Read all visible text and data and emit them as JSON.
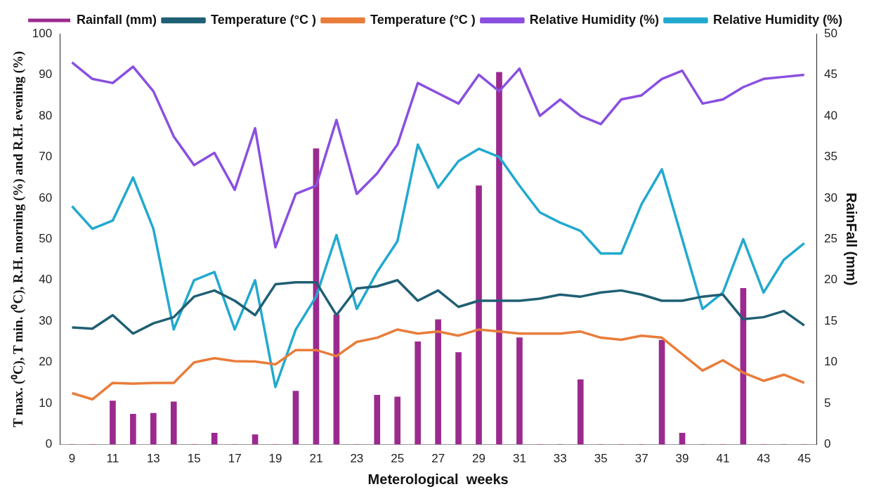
{
  "chart_data": {
    "type": "line",
    "xlabel": "Meterological  weeks",
    "ylabel": "T max. (⁰C), T min. (⁰C), R.H. morning (%) and R.H. evening (%)",
    "y2label": "RainFall (mm)",
    "x": [
      9,
      10,
      11,
      12,
      13,
      14,
      15,
      16,
      17,
      18,
      19,
      20,
      21,
      22,
      23,
      24,
      25,
      26,
      27,
      28,
      29,
      30,
      31,
      32,
      33,
      34,
      35,
      36,
      37,
      38,
      39,
      40,
      41,
      42,
      43,
      44,
      45
    ],
    "xlim": [
      8.4,
      45.6
    ],
    "xticks": [
      9,
      11,
      13,
      15,
      17,
      19,
      21,
      23,
      25,
      27,
      29,
      31,
      33,
      35,
      37,
      39,
      41,
      43,
      45
    ],
    "ylim": [
      0,
      100
    ],
    "yticks": [
      0,
      10,
      20,
      30,
      40,
      50,
      60,
      70,
      80,
      90,
      100
    ],
    "y2lim": [
      0,
      50
    ],
    "y2ticks": [
      0,
      5,
      10,
      15,
      20,
      25,
      30,
      35,
      40,
      45,
      50
    ],
    "grid": false,
    "legend": "top",
    "marker": "none",
    "line_style": "solid",
    "series": [
      {
        "name": "Rainfall (mm)",
        "type": "bar",
        "axis": "y2",
        "color": "#9b2a8f",
        "values": [
          0,
          0,
          5.3,
          3.7,
          3.8,
          5.2,
          0,
          1.4,
          0,
          1.2,
          0,
          6.5,
          36,
          15.8,
          0,
          6,
          5.8,
          12.5,
          15.2,
          11.2,
          31.5,
          45.3,
          13,
          0,
          0,
          7.9,
          0,
          0,
          0,
          12.7,
          1.4,
          0,
          0,
          19,
          0,
          0,
          0
        ]
      },
      {
        "name": "Temperature (°C )",
        "color": "#1f5f73",
        "values": [
          28.5,
          28.2,
          31.5,
          27,
          29.5,
          31,
          36,
          37.5,
          35,
          31.5,
          39,
          39.5,
          39.5,
          31.5,
          38,
          38.5,
          40,
          35,
          37.5,
          33.5,
          35,
          35,
          35,
          35.5,
          36.5,
          36,
          37,
          37.5,
          36.5,
          35,
          35,
          36,
          36.5,
          30.5,
          31,
          32.5,
          29
        ]
      },
      {
        "name": "Temperature (°C )",
        "color": "#e97c3a",
        "values": [
          12.5,
          11,
          15,
          14.8,
          15,
          15,
          20,
          21,
          20.3,
          20.2,
          19.5,
          23,
          23,
          21.5,
          25,
          26,
          28,
          27,
          27.5,
          26.5,
          28,
          27.5,
          27,
          27,
          27,
          27.5,
          26,
          25.5,
          26.5,
          26,
          22,
          18,
          20.5,
          17.5,
          15.5,
          17,
          15
        ]
      },
      {
        "name": "Relative Humidity (%)",
        "color": "#8a4fe0",
        "values": [
          93,
          89,
          88,
          92,
          86,
          75,
          68,
          71,
          62,
          77,
          48,
          61,
          63,
          79,
          61,
          66,
          73,
          88,
          85.5,
          83,
          90,
          86,
          91.5,
          80,
          84,
          80,
          78,
          84,
          85,
          89,
          91,
          83,
          84,
          87,
          89,
          89.5,
          90
        ]
      },
      {
        "name": "Relative Humidity (%)",
        "color": "#22a9cf",
        "values": [
          58,
          52.5,
          54.5,
          65,
          52.5,
          28,
          40,
          42,
          28,
          40,
          14,
          28,
          36,
          51,
          33,
          42,
          49.5,
          73,
          62.5,
          69,
          72,
          70,
          63,
          56.5,
          54,
          52,
          46.5,
          46.5,
          58.5,
          67,
          50,
          33,
          37,
          50,
          37,
          45,
          49
        ]
      }
    ]
  }
}
